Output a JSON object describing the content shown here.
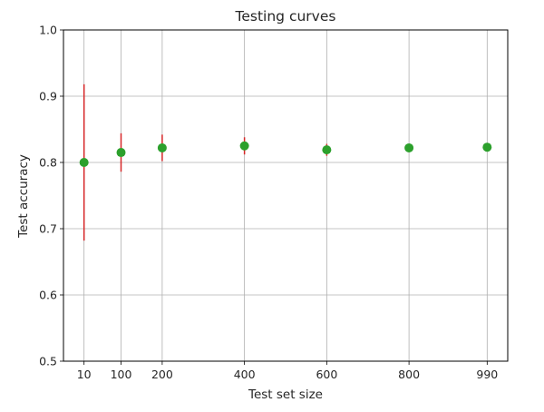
{
  "chart_data": {
    "type": "scatter",
    "title": "Testing curves",
    "xlabel": "Test set size",
    "ylabel": "Test accuracy",
    "x_ticks": [
      10,
      100,
      200,
      400,
      600,
      800,
      990
    ],
    "x_tick_labels": [
      "10",
      "100",
      "200",
      "400",
      "600",
      "800",
      "990"
    ],
    "xlim": [
      -40,
      1040
    ],
    "y_ticks": [
      0.5,
      0.6,
      0.7,
      0.8,
      0.9,
      1.0
    ],
    "y_tick_labels": [
      "0.5",
      "0.6",
      "0.7",
      "0.8",
      "0.9",
      "1.0"
    ],
    "ylim": [
      0.5,
      1.0
    ],
    "grid": true,
    "series": [
      {
        "x": [
          10,
          100,
          200,
          400,
          600,
          800,
          990
        ],
        "y": [
          0.8,
          0.815,
          0.822,
          0.825,
          0.819,
          0.822,
          0.823
        ],
        "yerr": [
          0.118,
          0.029,
          0.02,
          0.013,
          0.009,
          0.006,
          0.003
        ],
        "marker_color": "#2ca02c",
        "errorbar_color": "#d62728"
      }
    ]
  }
}
